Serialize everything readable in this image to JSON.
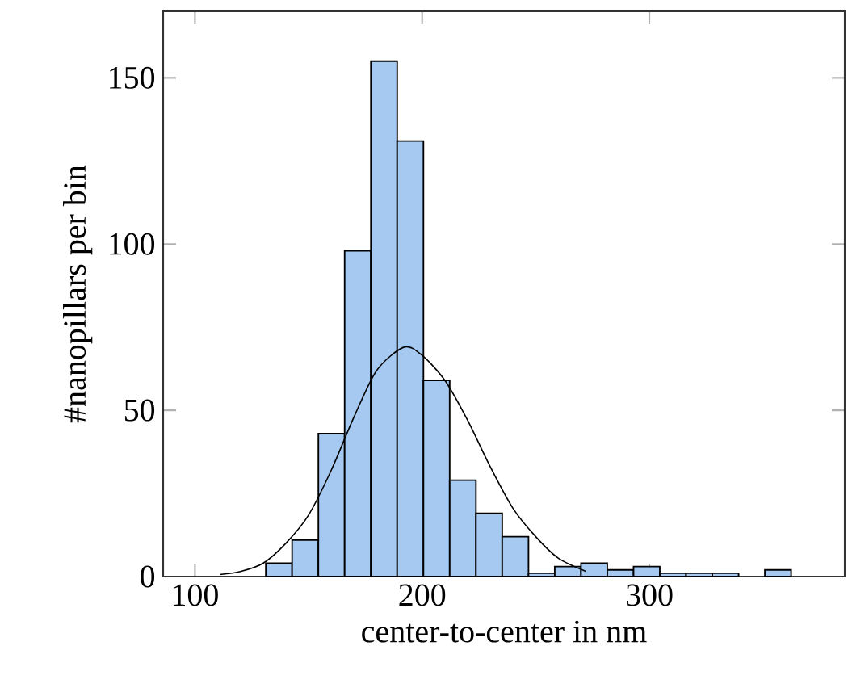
{
  "chart_data": {
    "type": "histogram",
    "xlabel": "center-to-center in nm",
    "ylabel": "#nanopillars per bin",
    "xlim": [
      86,
      386
    ],
    "ylim": [
      0,
      170
    ],
    "xticks": [
      100,
      200,
      300
    ],
    "yticks": [
      0,
      50,
      100,
      150
    ],
    "grid": false,
    "series": [
      {
        "color": "#a5c9f1",
        "bins": [
          131.2,
          142.76,
          154.32,
          165.88,
          177.44,
          189.0,
          200.56,
          212.12,
          223.68,
          235.24,
          246.8,
          258.36,
          269.92,
          281.48,
          293.04,
          304.6,
          316.16,
          327.72,
          339.28,
          350.84,
          362.4
        ],
        "values": [
          4,
          11,
          43,
          98,
          155,
          131,
          59,
          29,
          19,
          12,
          1,
          3,
          4,
          2,
          3,
          1,
          1,
          1,
          0,
          2
        ]
      },
      {
        "type": "line",
        "color": "#000000",
        "x": [
          111,
          120,
          130,
          140,
          150,
          160,
          170,
          180,
          192,
          200,
          210,
          220,
          230,
          240,
          250,
          260,
          272
        ],
        "values": [
          0.6,
          1.5,
          4,
          10,
          18.5,
          32,
          48,
          62,
          69,
          66.5,
          59,
          47,
          33,
          20.5,
          12,
          5.5,
          1.6
        ]
      }
    ]
  }
}
